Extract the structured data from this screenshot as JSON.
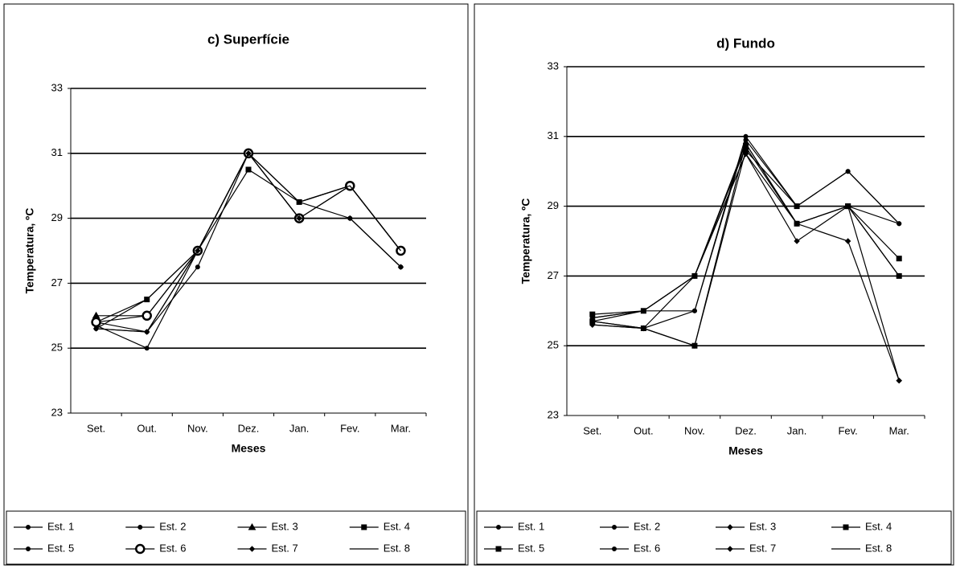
{
  "chart_data": [
    {
      "type": "line",
      "title": "c) Superfície",
      "x_label": "Meses",
      "y_label": "Temperatura, ºC",
      "categories": [
        "Set.",
        "Out.",
        "Nov.",
        "Dez.",
        "Jan.",
        "Fev.",
        "Mar."
      ],
      "ylim": [
        23,
        33
      ],
      "yticks": [
        23,
        25,
        27,
        29,
        31,
        33
      ],
      "grid": true,
      "series": [
        {
          "name": "Est. 1",
          "color": "#000",
          "marker": "dot",
          "values": [
            25.8,
            25.5,
            27.5,
            31,
            29.5,
            29,
            27.5
          ]
        },
        {
          "name": "Est. 2",
          "color": "#000",
          "marker": "dot",
          "values": [
            25.7,
            25,
            28,
            31,
            29,
            29,
            27.5
          ]
        },
        {
          "name": "Est. 3",
          "color": "#000",
          "marker": "triangle",
          "values": [
            26,
            26,
            28,
            31,
            29,
            30,
            28
          ]
        },
        {
          "name": "Est. 4",
          "color": "#000",
          "marker": "square",
          "values": [
            25.8,
            26.5,
            28,
            30.5,
            29.5,
            30,
            28
          ]
        },
        {
          "name": "Est. 5",
          "color": "#000",
          "marker": "dot",
          "values": [
            25.6,
            26.5,
            28,
            31,
            29.5,
            30,
            28
          ]
        },
        {
          "name": "Est. 6",
          "color": "#000",
          "marker": "ring",
          "values": [
            25.8,
            26,
            28,
            31,
            29,
            30,
            28
          ]
        },
        {
          "name": "Est. 7",
          "color": "#000",
          "marker": "diamond",
          "values": [
            25.6,
            25.5,
            28,
            31,
            29,
            29,
            27.5
          ]
        },
        {
          "name": "Est. 8",
          "color": "#000",
          "marker": "none",
          "values": [
            25.6,
            25.5,
            28,
            31,
            29.5,
            30,
            28
          ]
        }
      ]
    },
    {
      "type": "line",
      "title": "d) Fundo",
      "x_label": "Meses",
      "y_label": "Temperatura, ºC",
      "categories": [
        "Set.",
        "Out.",
        "Nov.",
        "Dez.",
        "Jan.",
        "Fev.",
        "Mar."
      ],
      "ylim": [
        23,
        33
      ],
      "yticks": [
        23,
        25,
        27,
        29,
        31,
        33
      ],
      "grid": true,
      "series": [
        {
          "name": "Est. 1",
          "color": "#000",
          "marker": "dot",
          "values": [
            25.8,
            26,
            27,
            30.8,
            28.5,
            29,
            28.5
          ]
        },
        {
          "name": "Est. 2",
          "color": "#000",
          "marker": "dot",
          "values": [
            25.7,
            25.5,
            26,
            31,
            29,
            30,
            28.5
          ]
        },
        {
          "name": "Est. 3",
          "color": "#000",
          "marker": "diamond",
          "values": [
            25.6,
            25.5,
            27,
            30.5,
            28,
            29,
            24
          ]
        },
        {
          "name": "Est. 4",
          "color": "#000",
          "marker": "square",
          "values": [
            25.9,
            26,
            27,
            30.7,
            28.5,
            29,
            27.5
          ]
        },
        {
          "name": "Est. 5",
          "color": "#000",
          "marker": "square",
          "values": [
            25.7,
            25.5,
            25,
            30.6,
            29,
            29,
            27
          ]
        },
        {
          "name": "Est. 6",
          "color": "#000",
          "marker": "dot",
          "values": [
            25.8,
            26,
            26,
            30.9,
            29,
            30,
            28.5
          ]
        },
        {
          "name": "Est. 7",
          "color": "#000",
          "marker": "diamond",
          "values": [
            25.6,
            25.5,
            25,
            30.8,
            28.5,
            28,
            24
          ]
        },
        {
          "name": "Est. 8",
          "color": "#000",
          "marker": "none",
          "values": [
            25.7,
            26,
            27,
            30.5,
            28.5,
            29,
            27
          ]
        }
      ]
    }
  ]
}
